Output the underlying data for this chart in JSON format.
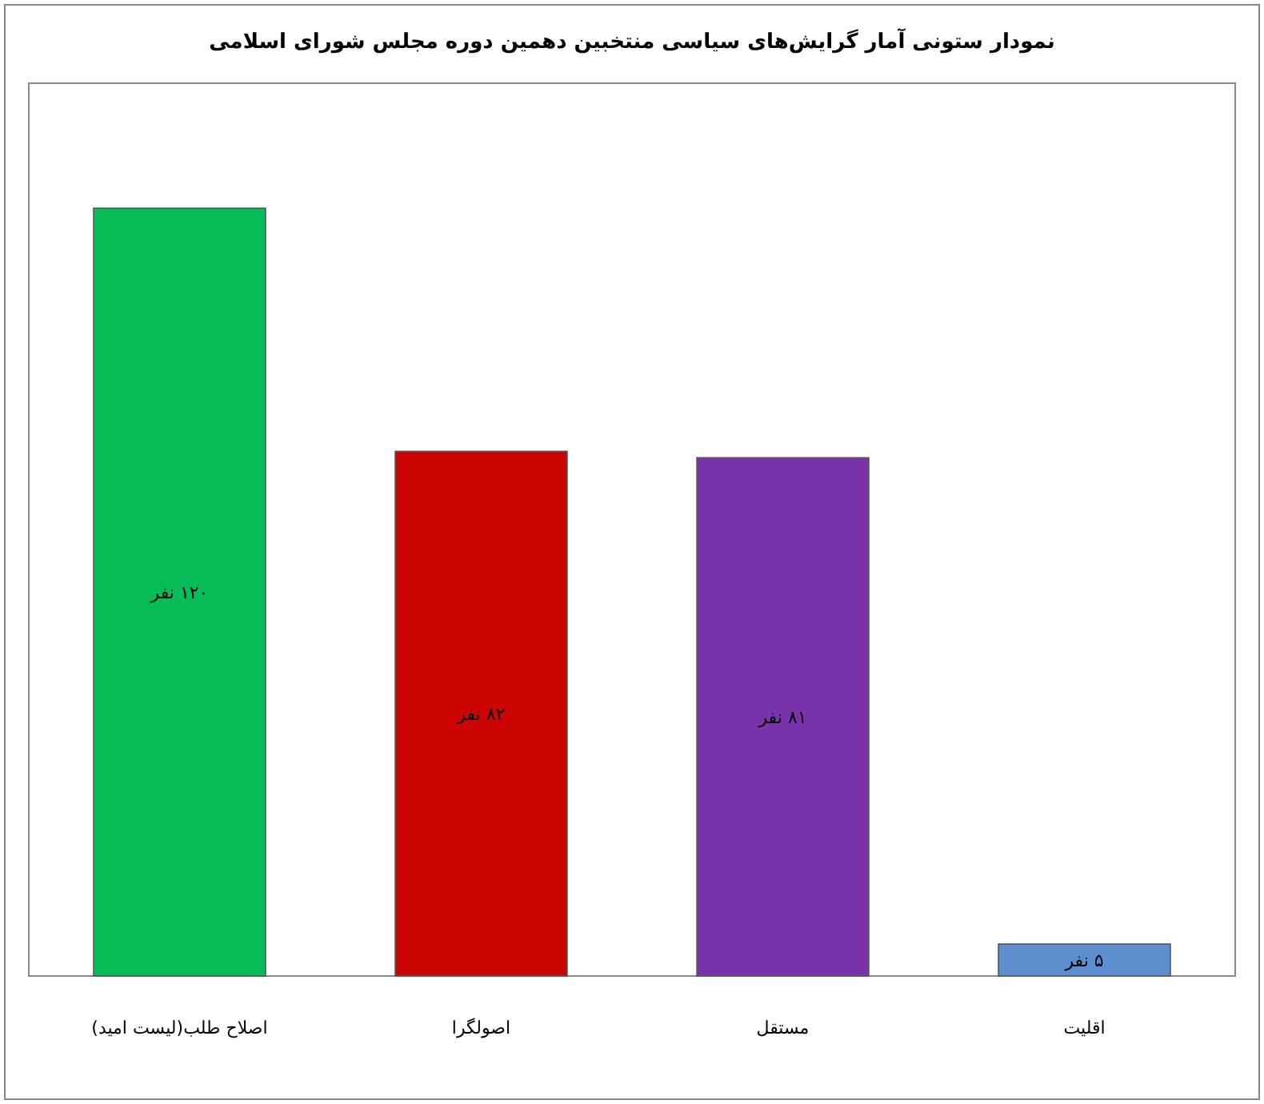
{
  "chart_data": {
    "type": "bar",
    "title": "نمودار ستونی آمار گرایش‌های سیاسی منتخبین دهمین دوره مجلس شورای اسلامی",
    "categories": [
      "اصلاح طلب(لیست امید)",
      "اصولگرا",
      "مستقل",
      "اقلیت"
    ],
    "values": [
      120,
      82,
      81,
      5
    ],
    "colors": [
      "#06bd5a",
      "#cc0404",
      "#7a33aa",
      "#5b8fcf"
    ],
    "value_labels": [
      "۱۲۰ نفر",
      "۸۲ نفر",
      "۸۱ نفر",
      "۵ نفر"
    ]
  }
}
